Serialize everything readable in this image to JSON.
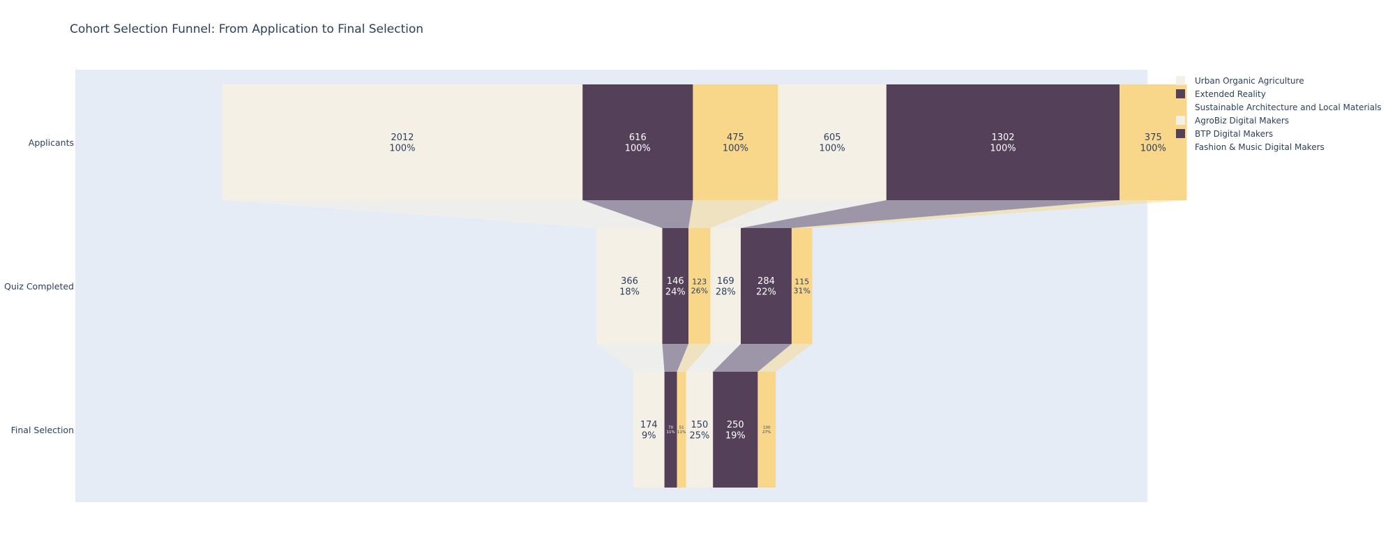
{
  "chart_data": {
    "type": "funnel",
    "title": "Cohort Selection Funnel: From Application to Final Selection",
    "stages": [
      "Applicants",
      "Quiz Completed",
      "Final Selection"
    ],
    "colors": {
      "plot_bg": "#E5ECF6",
      "cream": "#F5F0E6",
      "plum": "#544059",
      "gold": "#F9D78A"
    },
    "series": [
      {
        "name": "Urban Organic Agriculture",
        "color": "#F5F0E6",
        "values": [
          2012,
          366,
          174
        ],
        "percents": [
          "100%",
          "18%",
          "9%"
        ]
      },
      {
        "name": "Extended Reality",
        "color": "#544059",
        "values": [
          616,
          146,
          70
        ],
        "percents": [
          "100%",
          "24%",
          "11%"
        ]
      },
      {
        "name": "Sustainable Architecture and Local Materials",
        "color": "#F9D78A",
        "values": [
          475,
          123,
          51
        ],
        "percents": [
          "100%",
          "26%",
          "11%"
        ]
      },
      {
        "name": "AgroBiz Digital Makers",
        "color": "#F5F0E6",
        "values": [
          605,
          169,
          150
        ],
        "percents": [
          "100%",
          "28%",
          "25%"
        ]
      },
      {
        "name": "BTP Digital Makers",
        "color": "#544059",
        "values": [
          1302,
          284,
          250
        ],
        "percents": [
          "100%",
          "22%",
          "19%"
        ]
      },
      {
        "name": "Fashion & Music Digital Makers",
        "color": "#F9D78A",
        "values": [
          375,
          115,
          100
        ],
        "percents": [
          "100%",
          "31%",
          "27%"
        ]
      }
    ],
    "legend_position": "top-right"
  }
}
